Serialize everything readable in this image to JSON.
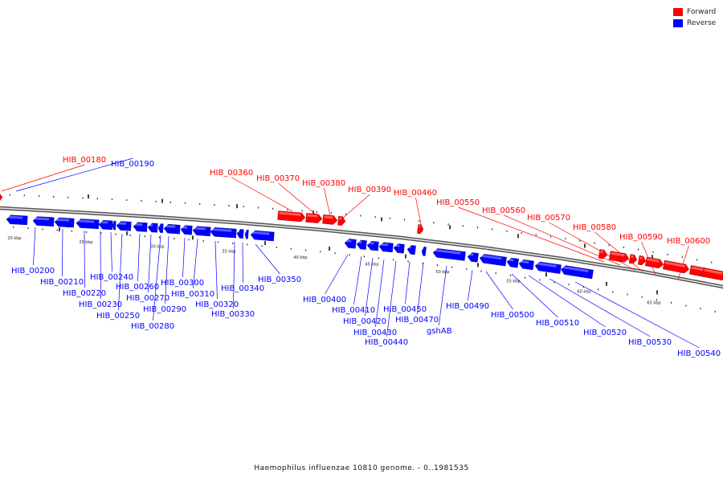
{
  "legend": {
    "forward_label": "Forward",
    "reverse_label": "Reverse",
    "forward_color": "#ff0000",
    "reverse_color": "#0000ff"
  },
  "caption": "Haemophilus influenzae 10810 genome. - 0..1981535",
  "scale_ticks": [
    "20 kbp",
    "25 kbp",
    "30 kbp",
    "35 kbp",
    "40 kbp",
    "45 kbp",
    "50 kbp",
    "55 kbp",
    "60 kbp",
    "65 kbp"
  ],
  "forward_genes": [
    "HIB_00180",
    "HIB_00360",
    "HIB_00370",
    "HIB_00380",
    "HIB_00390",
    "HIB_00460",
    "HIB_00550",
    "HIB_00560",
    "HIB_00570",
    "HIB_00580",
    "HIB_00590",
    "HIB_00600"
  ],
  "reverse_genes": [
    "HIB_00190",
    "HIB_00200",
    "HIB_00210",
    "HIB_00220",
    "HIB_00230",
    "HIB_00240",
    "HIB_00250",
    "HIB_00260",
    "HIB_00270",
    "HIB_00280",
    "HIB_00290",
    "HIB_00300",
    "HIB_00310",
    "HIB_00320",
    "HIB_00330",
    "HIB_00340",
    "HIB_00350",
    "HIB_00400",
    "HIB_00410",
    "HIB_00420",
    "HIB_00430",
    "HIB_00440",
    "HIB_00450",
    "HIB_00470",
    "gshAB",
    "HIB_00490",
    "HIB_00500",
    "HIB_00510",
    "HIB_00520",
    "HIB_00530",
    "HIB_00540"
  ]
}
